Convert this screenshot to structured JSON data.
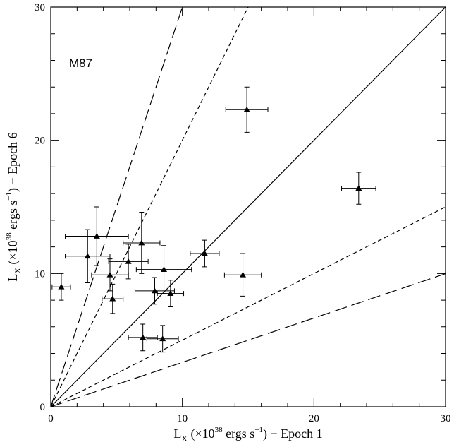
{
  "chart_data": {
    "type": "scatter",
    "title": "",
    "annotation": "M87",
    "xlabel": {
      "prefix": "L",
      "sub": "X",
      "pre_sup": " (×10",
      "sup": "38",
      "mid": " ergs s",
      "sup2": "−1",
      "post": ") − Epoch 1"
    },
    "ylabel": {
      "prefix": "L",
      "sub": "X",
      "pre_sup": " (×10",
      "sup": "38",
      "mid": " ergs s",
      "sup2": "−1",
      "post": ") − Epoch 6"
    },
    "xlim": [
      0,
      30
    ],
    "ylim": [
      0,
      30
    ],
    "xticks": [
      0,
      10,
      20,
      30
    ],
    "yticks": [
      0,
      10,
      20,
      30
    ],
    "grid": false,
    "reference_lines": [
      {
        "slope": 1,
        "style": "solid"
      },
      {
        "slope": 2,
        "style": "short-dash"
      },
      {
        "slope": 0.5,
        "style": "short-dash"
      },
      {
        "slope": 3,
        "style": "long-dash"
      },
      {
        "slope": 0.333,
        "style": "long-dash"
      }
    ],
    "points": [
      {
        "x": 0.8,
        "y": 9.0,
        "xerr": 0.7,
        "yerr": 1.0
      },
      {
        "x": 2.8,
        "y": 11.3,
        "xerr": 1.7,
        "yerr": 2.0
      },
      {
        "x": 3.5,
        "y": 12.8,
        "xerr": 2.4,
        "yerr": 2.2
      },
      {
        "x": 4.5,
        "y": 9.9,
        "xerr": 1.4,
        "yerr": 1.2
      },
      {
        "x": 4.7,
        "y": 8.1,
        "xerr": 0.8,
        "yerr": 1.1
      },
      {
        "x": 5.9,
        "y": 10.9,
        "xerr": 1.5,
        "yerr": 1.3
      },
      {
        "x": 6.9,
        "y": 12.3,
        "xerr": 1.4,
        "yerr": 2.3
      },
      {
        "x": 7.9,
        "y": 8.7,
        "xerr": 1.5,
        "yerr": 1.0
      },
      {
        "x": 8.6,
        "y": 10.3,
        "xerr": 2.1,
        "yerr": 1.8
      },
      {
        "x": 9.1,
        "y": 8.5,
        "xerr": 1.0,
        "yerr": 1.0
      },
      {
        "x": 7.0,
        "y": 5.2,
        "xerr": 1.1,
        "yerr": 1.0
      },
      {
        "x": 8.5,
        "y": 5.1,
        "xerr": 1.2,
        "yerr": 1.0
      },
      {
        "x": 11.7,
        "y": 11.5,
        "xerr": 1.1,
        "yerr": 1.0
      },
      {
        "x": 14.6,
        "y": 9.9,
        "xerr": 1.4,
        "yerr": 1.6
      },
      {
        "x": 14.9,
        "y": 22.3,
        "xerr": 1.6,
        "yerr": 1.7
      },
      {
        "x": 23.4,
        "y": 16.4,
        "xerr": 1.3,
        "yerr": 1.2
      }
    ]
  }
}
